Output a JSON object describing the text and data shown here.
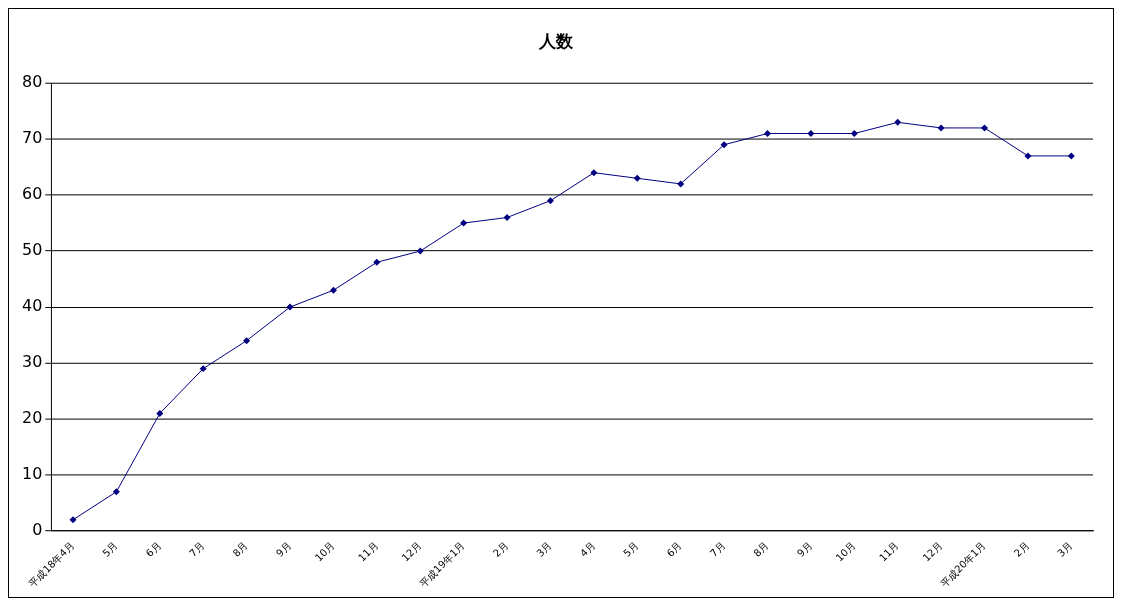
{
  "chart_data": {
    "type": "line",
    "title": "人数",
    "categories": [
      "平成18年4月",
      "5月",
      "6月",
      "7月",
      "8月",
      "9月",
      "10月",
      "11月",
      "12月",
      "平成19年1月",
      "2月",
      "3月",
      "4月",
      "5月",
      "6月",
      "7月",
      "8月",
      "9月",
      "10月",
      "11月",
      "12月",
      "平成20年1月",
      "2月",
      "3月"
    ],
    "series": [
      {
        "color": "#000080",
        "values": [
          2,
          7,
          21,
          29,
          34,
          40,
          43,
          48,
          50,
          55,
          56,
          59,
          64,
          63,
          62,
          69,
          71,
          71,
          71,
          73,
          72,
          72,
          67,
          67
        ]
      }
    ],
    "ylim": [
      0,
      80
    ],
    "yticks": [
      0,
      10,
      20,
      30,
      40,
      50,
      60,
      70,
      80
    ],
    "grid": "y",
    "legend": false,
    "marker": "diamond",
    "line_style": "solid"
  }
}
